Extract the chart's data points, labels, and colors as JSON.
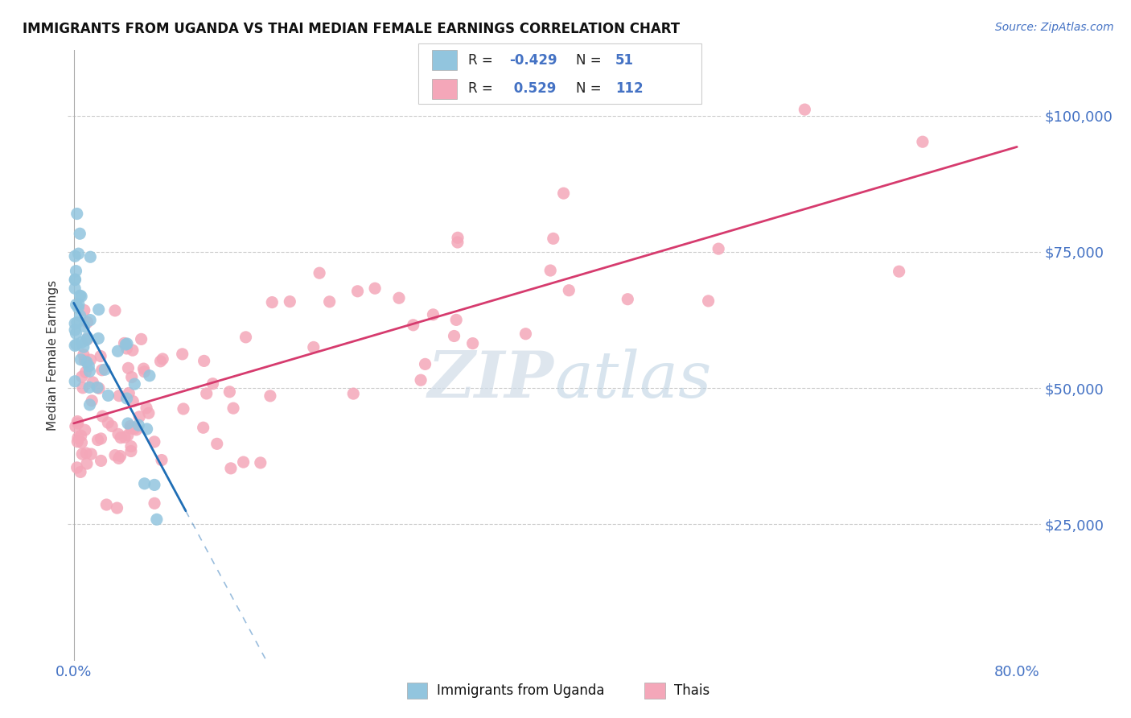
{
  "title": "IMMIGRANTS FROM UGANDA VS THAI MEDIAN FEMALE EARNINGS CORRELATION CHART",
  "source": "Source: ZipAtlas.com",
  "ylabel": "Median Female Earnings",
  "ytick_labels": [
    "$25,000",
    "$50,000",
    "$75,000",
    "$100,000"
  ],
  "ytick_values": [
    25000,
    50000,
    75000,
    100000
  ],
  "xlim": [
    -0.005,
    0.82
  ],
  "ylim": [
    0,
    112000
  ],
  "watermark_zip": "ZIP",
  "watermark_atlas": "atlas",
  "legend_r1": "-0.429",
  "legend_n1": "51",
  "legend_r2": " 0.529",
  "legend_n2": "112",
  "legend_label1": "Immigrants from Uganda",
  "legend_label2": "Thais",
  "blue_color": "#92c5de",
  "pink_color": "#f4a7b9",
  "blue_line_color": "#1f6eb5",
  "pink_line_color": "#d63b6e",
  "source_color": "#4472C4",
  "tick_label_color": "#4472C4",
  "grid_color": "#cccccc",
  "axis_color": "#aaaaaa"
}
